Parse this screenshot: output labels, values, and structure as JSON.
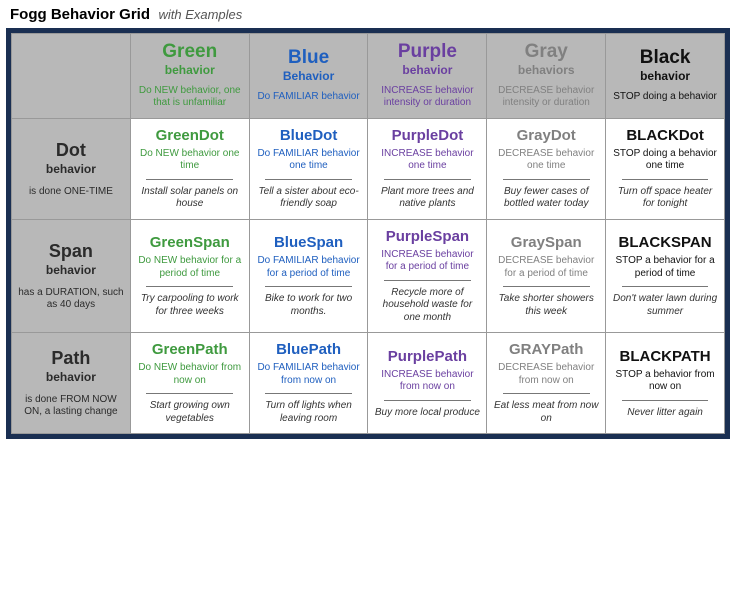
{
  "header": {
    "title": "Fogg Behavior Grid",
    "subtitle": "with Examples"
  },
  "grid": {
    "border_color": "#1a2f52",
    "header_bg": "#b8b8b8",
    "cell_border": "#999999"
  },
  "columns": [
    {
      "key": "green",
      "title": "Green",
      "sub": "behavior",
      "desc": "Do NEW behavior, one that is unfamiliar",
      "color": "#3f9a3f"
    },
    {
      "key": "blue",
      "title": "Blue",
      "sub": "Behavior",
      "desc": "Do FAMILIAR behavior",
      "color": "#1f5fbf"
    },
    {
      "key": "purple",
      "title": "Purple",
      "sub": "behavior",
      "desc": "INCREASE behavior intensity or duration",
      "color": "#6a3fa0"
    },
    {
      "key": "gray",
      "title": "Gray",
      "sub": "behaviors",
      "desc": "DECREASE behavior intensity or duration",
      "color": "#808080"
    },
    {
      "key": "black",
      "title": "Black",
      "sub": "behavior",
      "desc": "STOP doing a behavior",
      "color": "#111111"
    }
  ],
  "rows": [
    {
      "key": "dot",
      "title": "Dot",
      "sub": "behavior",
      "desc": "is done ONE-TIME",
      "cells": [
        {
          "title": "GreenDot",
          "desc": "Do NEW behavior one time",
          "ex": "Install solar panels on house"
        },
        {
          "title": "BlueDot",
          "desc": "Do FAMILIAR behavior one time",
          "ex": "Tell a sister about eco-friendly soap"
        },
        {
          "title": "PurpleDot",
          "desc": "INCREASE behavior one time",
          "ex": "Plant more trees and native plants"
        },
        {
          "title": "GrayDot",
          "desc": "DECREASE behavior one time",
          "ex": "Buy fewer cases of bottled water today"
        },
        {
          "title": "BLACKDot",
          "desc": "STOP doing a behavior one time",
          "ex": "Turn off space heater for tonight"
        }
      ]
    },
    {
      "key": "span",
      "title": "Span",
      "sub": "behavior",
      "desc": "has a DURATION, such as 40 days",
      "cells": [
        {
          "title": "GreenSpan",
          "desc": "Do NEW behavior for a period of time",
          "ex": "Try carpooling to work for three weeks"
        },
        {
          "title": "BlueSpan",
          "desc": "Do FAMILIAR behavior for a period of time",
          "ex": "Bike to work for two months."
        },
        {
          "title": "PurpleSpan",
          "desc": "INCREASE behavior for a period of time",
          "ex": "Recycle more of household waste for one month"
        },
        {
          "title": "GraySpan",
          "desc": "DECREASE behavior for a period of time",
          "ex": "Take shorter showers this week"
        },
        {
          "title": "BLACKSPAN",
          "desc": "STOP a behavior for a period of time",
          "ex": "Don't water lawn during summer"
        }
      ]
    },
    {
      "key": "path",
      "title": "Path",
      "sub": "behavior",
      "desc": "is done FROM NOW ON, a lasting change",
      "cells": [
        {
          "title": "GreenPath",
          "desc": "Do NEW behavior from now on",
          "ex": "Start growing own vegetables"
        },
        {
          "title": "BluePath",
          "desc": "Do FAMILIAR behavior from now on",
          "ex": "Turn off lights when leaving room"
        },
        {
          "title": "PurplePath",
          "desc": "INCREASE behavior from now on",
          "ex": "Buy more local produce"
        },
        {
          "title": "GRAYPath",
          "desc": "DECREASE behavior from now on",
          "ex": "Eat less meat from now on"
        },
        {
          "title": "BLACKPATH",
          "desc": "STOP a behavior from now on",
          "ex": "Never litter again"
        }
      ]
    }
  ]
}
